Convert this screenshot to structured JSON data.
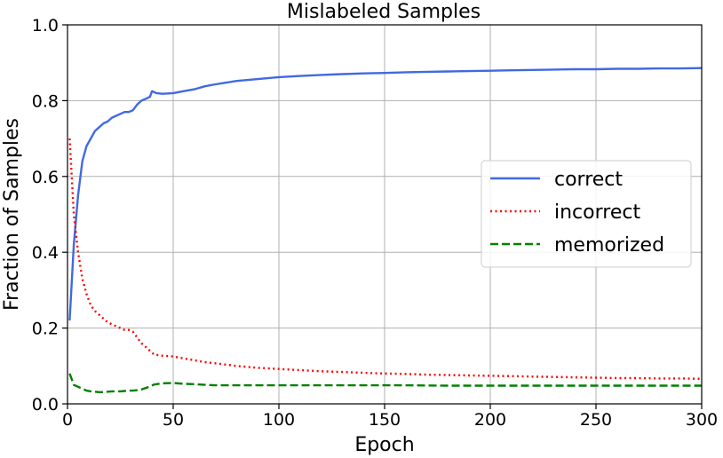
{
  "chart_data": {
    "type": "line",
    "title": "Mislabeled Samples",
    "xlabel": "Epoch",
    "ylabel": "Fraction of Samples",
    "xlim": [
      0,
      300
    ],
    "ylim": [
      0.0,
      1.0
    ],
    "xticks": [
      0,
      50,
      100,
      150,
      200,
      250,
      300
    ],
    "xtick_labels": [
      "0",
      "50",
      "100",
      "150",
      "200",
      "250",
      "300"
    ],
    "yticks": [
      0.0,
      0.2,
      0.4,
      0.6,
      0.8,
      1.0
    ],
    "ytick_labels": [
      "0.0",
      "0.2",
      "0.4",
      "0.6",
      "0.8",
      "1.0"
    ],
    "grid": true,
    "legend_position": "center-right",
    "series": [
      {
        "name": "correct",
        "color": "#4169e1",
        "style": "solid",
        "x": [
          1,
          3,
          5,
          7,
          9,
          11,
          13,
          15,
          17,
          19,
          21,
          23,
          25,
          27,
          29,
          31,
          33,
          35,
          37,
          39,
          40,
          42,
          45,
          50,
          55,
          60,
          65,
          70,
          80,
          90,
          100,
          110,
          120,
          130,
          140,
          150,
          160,
          170,
          180,
          190,
          200,
          210,
          220,
          230,
          240,
          250,
          260,
          270,
          280,
          290,
          300
        ],
        "y": [
          0.22,
          0.42,
          0.55,
          0.64,
          0.68,
          0.7,
          0.72,
          0.73,
          0.74,
          0.745,
          0.755,
          0.76,
          0.765,
          0.77,
          0.77,
          0.775,
          0.79,
          0.8,
          0.805,
          0.81,
          0.825,
          0.82,
          0.818,
          0.82,
          0.825,
          0.83,
          0.838,
          0.843,
          0.852,
          0.857,
          0.862,
          0.865,
          0.868,
          0.87,
          0.872,
          0.873,
          0.875,
          0.876,
          0.877,
          0.878,
          0.879,
          0.88,
          0.881,
          0.882,
          0.883,
          0.883,
          0.884,
          0.884,
          0.885,
          0.885,
          0.886
        ]
      },
      {
        "name": "incorrect",
        "color": "#ff0000",
        "style": "dotted",
        "x": [
          1,
          3,
          5,
          7,
          9,
          11,
          13,
          15,
          17,
          19,
          21,
          23,
          25,
          27,
          29,
          31,
          33,
          35,
          37,
          39,
          41,
          45,
          50,
          55,
          60,
          65,
          70,
          80,
          90,
          100,
          110,
          120,
          130,
          140,
          150,
          160,
          170,
          180,
          190,
          200,
          210,
          220,
          230,
          240,
          250,
          260,
          270,
          280,
          290,
          300
        ],
        "y": [
          0.7,
          0.5,
          0.4,
          0.33,
          0.29,
          0.26,
          0.245,
          0.235,
          0.225,
          0.215,
          0.21,
          0.205,
          0.2,
          0.195,
          0.195,
          0.19,
          0.175,
          0.16,
          0.15,
          0.14,
          0.13,
          0.127,
          0.125,
          0.12,
          0.115,
          0.11,
          0.107,
          0.1,
          0.095,
          0.092,
          0.089,
          0.086,
          0.084,
          0.082,
          0.08,
          0.079,
          0.077,
          0.076,
          0.075,
          0.074,
          0.073,
          0.072,
          0.071,
          0.07,
          0.069,
          0.068,
          0.068,
          0.067,
          0.067,
          0.066
        ]
      },
      {
        "name": "memorized",
        "color": "#008000",
        "style": "dashed",
        "x": [
          1,
          3,
          5,
          7,
          9,
          11,
          13,
          15,
          17,
          19,
          21,
          23,
          25,
          27,
          29,
          31,
          33,
          35,
          37,
          39,
          41,
          45,
          50,
          55,
          60,
          65,
          70,
          80,
          90,
          100,
          120,
          140,
          160,
          180,
          200,
          220,
          240,
          260,
          280,
          300
        ],
        "y": [
          0.08,
          0.05,
          0.045,
          0.04,
          0.035,
          0.033,
          0.032,
          0.031,
          0.031,
          0.032,
          0.033,
          0.033,
          0.033,
          0.034,
          0.035,
          0.035,
          0.036,
          0.038,
          0.042,
          0.046,
          0.051,
          0.054,
          0.055,
          0.053,
          0.052,
          0.05,
          0.049,
          0.049,
          0.049,
          0.049,
          0.049,
          0.049,
          0.049,
          0.048,
          0.048,
          0.048,
          0.048,
          0.048,
          0.048,
          0.048
        ]
      }
    ]
  }
}
